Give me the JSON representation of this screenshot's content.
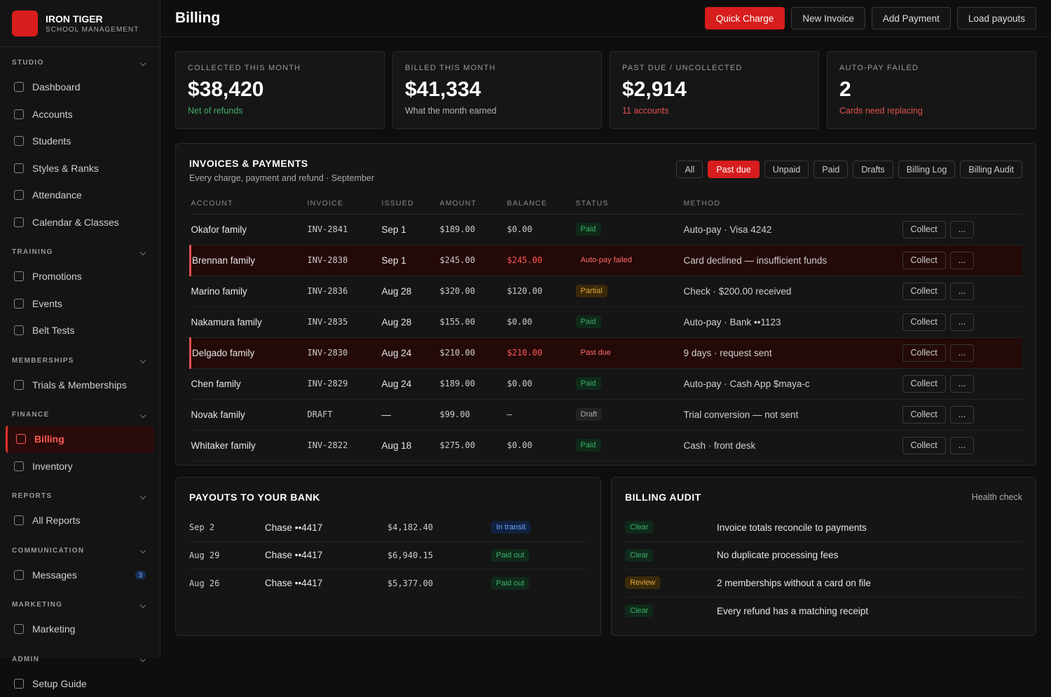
{
  "brand": {
    "name": "IRON TIGER",
    "subtitle": "SCHOOL MANAGEMENT"
  },
  "nav": [
    {
      "section": "STUDIO",
      "items": [
        {
          "label": "Dashboard"
        },
        {
          "label": "Accounts"
        },
        {
          "label": "Students"
        },
        {
          "label": "Styles & Ranks"
        },
        {
          "label": "Attendance"
        },
        {
          "label": "Calendar & Classes"
        }
      ]
    },
    {
      "section": "TRAINING",
      "items": [
        {
          "label": "Promotions"
        },
        {
          "label": "Events"
        },
        {
          "label": "Belt Tests"
        }
      ]
    },
    {
      "section": "MEMBERSHIPS",
      "items": [
        {
          "label": "Trials & Memberships"
        }
      ]
    },
    {
      "section": "FINANCE",
      "items": [
        {
          "label": "Billing",
          "active": true
        },
        {
          "label": "Inventory"
        }
      ]
    },
    {
      "section": "REPORTS",
      "items": [
        {
          "label": "All Reports"
        }
      ]
    },
    {
      "section": "COMMUNICATION",
      "items": [
        {
          "label": "Messages",
          "badge": "3"
        }
      ]
    },
    {
      "section": "MARKETING",
      "items": [
        {
          "label": "Marketing"
        }
      ]
    },
    {
      "section": "ADMIN",
      "items": [
        {
          "label": "Setup Guide"
        }
      ]
    }
  ],
  "header": {
    "title": "Billing",
    "buttons": [
      "Quick Charge",
      "New Invoice",
      "Add Payment",
      "Load payouts"
    ]
  },
  "stats": [
    {
      "label": "COLLECTED THIS MONTH",
      "value": "$38,420",
      "note": "Net of refunds",
      "color": "#3fae6a"
    },
    {
      "label": "BILLED THIS MONTH",
      "value": "$41,334",
      "note": "What the month earned",
      "color": "#b5b5b5"
    },
    {
      "label": "PAST DUE / UNCOLLECTED",
      "value": "$2,914",
      "note": "11 accounts",
      "color": "#e0524f"
    },
    {
      "label": "AUTO-PAY FAILED",
      "value": "2",
      "note": "Cards need replacing",
      "color": "#e0524f"
    }
  ],
  "invoices": {
    "title": "INVOICES & PAYMENTS",
    "subtitle": "Every charge, payment and refund · September",
    "filters": [
      {
        "label": "All"
      },
      {
        "label": "Past due",
        "active": true
      },
      {
        "label": "Unpaid"
      },
      {
        "label": "Paid"
      },
      {
        "label": "Drafts"
      },
      {
        "label": "Billing Log"
      },
      {
        "label": "Billing Audit"
      }
    ],
    "columns": [
      "ACCOUNT",
      "INVOICE",
      "ISSUED",
      "AMOUNT",
      "BALANCE",
      "STATUS",
      "METHOD"
    ],
    "actions": [
      "Collect",
      "..."
    ],
    "rows": [
      {
        "account": "Okafor family",
        "invoice": "INV-2841",
        "issued": "Sep 1",
        "amount": "$189.00",
        "balance": "$0.00",
        "status": "Paid",
        "color": "green",
        "method": "Auto-pay · Visa 4242"
      },
      {
        "account": "Brennan family",
        "invoice": "INV-2838",
        "issued": "Sep 1",
        "amount": "$245.00",
        "balance": "$245.00",
        "status": "Auto-pay failed",
        "color": "red",
        "alert": true,
        "method": "Card declined — insufficient funds"
      },
      {
        "account": "Marino family",
        "invoice": "INV-2836",
        "issued": "Aug 28",
        "amount": "$320.00",
        "balance": "$120.00",
        "status": "Partial",
        "color": "amber",
        "method": "Check · $200.00 received"
      },
      {
        "account": "Nakamura family",
        "invoice": "INV-2835",
        "issued": "Aug 28",
        "amount": "$155.00",
        "balance": "$0.00",
        "status": "Paid",
        "color": "green",
        "method": "Auto-pay · Bank ••1123"
      },
      {
        "account": "Delgado family",
        "invoice": "INV-2830",
        "issued": "Aug 24",
        "amount": "$210.00",
        "balance": "$210.00",
        "status": "Past due",
        "color": "red",
        "alert": true,
        "method": "9 days · request sent"
      },
      {
        "account": "Chen family",
        "invoice": "INV-2829",
        "issued": "Aug 24",
        "amount": "$189.00",
        "balance": "$0.00",
        "status": "Paid",
        "color": "green",
        "method": "Auto-pay · Cash App $maya-c"
      },
      {
        "account": "Novak family",
        "invoice": "DRAFT",
        "issued": "—",
        "amount": "$99.00",
        "balance": "–",
        "status": "Draft",
        "color": "gray",
        "method": "Trial conversion — not sent"
      },
      {
        "account": "Whitaker family",
        "invoice": "INV-2822",
        "issued": "Aug 18",
        "amount": "$275.00",
        "balance": "$0.00",
        "status": "Paid",
        "color": "green",
        "method": "Cash · front desk"
      }
    ]
  },
  "payouts": {
    "title": "PAYOUTS TO YOUR BANK",
    "rows": [
      {
        "date": "Sep 2",
        "account": "Chase ••4417",
        "amount": "$4,182.40",
        "status": "In transit",
        "color": "blue"
      },
      {
        "date": "Aug 29",
        "account": "Chase ••4417",
        "amount": "$6,940.15",
        "status": "Paid out",
        "color": "green"
      },
      {
        "date": "Aug 26",
        "account": "Chase ••4417",
        "amount": "$5,377.00",
        "status": "Paid out",
        "color": "green"
      }
    ]
  },
  "audit": {
    "title": "BILLING AUDIT",
    "link": "Health check",
    "rows": [
      {
        "status": "Clear",
        "color": "green",
        "text": "Invoice totals reconcile to payments"
      },
      {
        "status": "Clear",
        "color": "green",
        "text": "No duplicate processing fees"
      },
      {
        "status": "Review",
        "color": "amber",
        "text": "2 memberships without a card on file"
      },
      {
        "status": "Clear",
        "color": "green",
        "text": "Every refund has a matching receipt"
      }
    ]
  }
}
